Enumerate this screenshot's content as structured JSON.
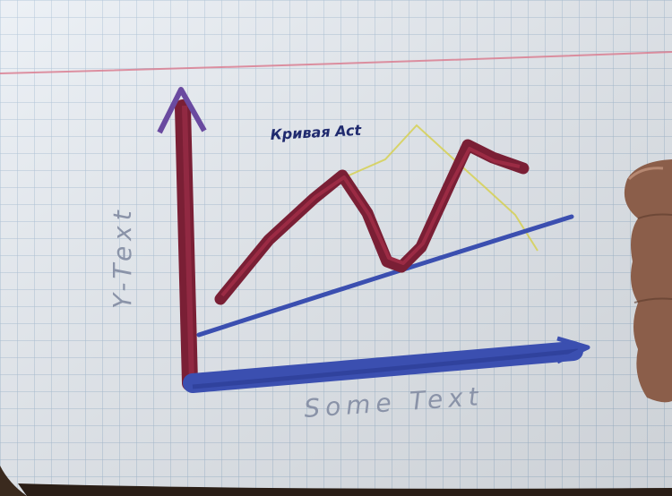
{
  "drawing": {
    "curve_label": "Кривая Act",
    "x_axis_text": "Some Text",
    "y_axis_text": "Y-Text"
  },
  "colors": {
    "paper": "#e9eef4",
    "grid": "#a9c0d6",
    "margin_line": "#d9788c",
    "axis_blue": "#3b4fb0",
    "curve_dark_red": "#7a1f35",
    "guide_yellow": "#d6cf4a",
    "pencil_grey": "#8a93a8",
    "finger": "#8b5e4a"
  }
}
